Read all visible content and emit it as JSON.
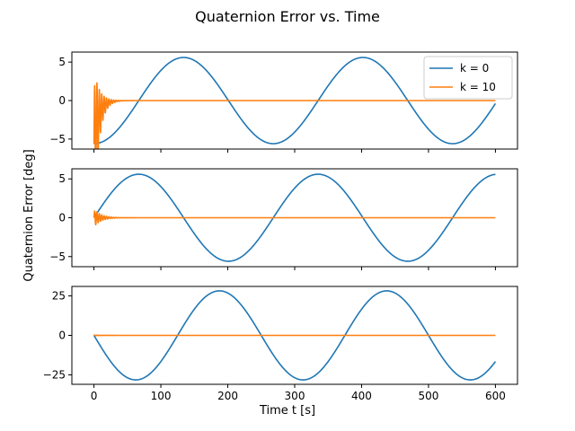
{
  "figure": {
    "title": "Quaternion Error vs. Time",
    "xlabel": "Time t [s]",
    "ylabel": "Quaternion Error [deg]"
  },
  "legend": [
    {
      "label": "k = 0",
      "color": "#1f77b4"
    },
    {
      "label": "k = 10",
      "color": "#ff7f0e"
    }
  ],
  "chart_data": [
    {
      "type": "line",
      "xlim": [
        -33,
        633
      ],
      "ylim": [
        -6.3,
        6.3
      ],
      "xticks": [
        0,
        100,
        200,
        300,
        400,
        500,
        600
      ],
      "yticks": [
        -5,
        0,
        5
      ],
      "show_xticklabels": false,
      "legend_position": "upper right",
      "series": [
        {
          "name": "k = 0",
          "color": "#1f77b4",
          "model": {
            "kind": "sine",
            "amplitude": 5.6,
            "period": 268,
            "phase_deg": -90,
            "x": [
              0,
              600
            ],
            "n": 601
          }
        },
        {
          "name": "k = 10",
          "color": "#ff7f0e",
          "model": {
            "kind": "damped",
            "start": -5.6,
            "amplitude": 9.8,
            "freq_hz": 0.28,
            "decay_s": 7.5,
            "x": [
              0,
              600
            ],
            "n": 2400
          }
        }
      ]
    },
    {
      "type": "line",
      "xlim": [
        -33,
        633
      ],
      "ylim": [
        -6.3,
        6.3
      ],
      "xticks": [
        0,
        100,
        200,
        300,
        400,
        500,
        600
      ],
      "yticks": [
        -5,
        0,
        5
      ],
      "show_xticklabels": false,
      "series": [
        {
          "name": "k = 0",
          "color": "#1f77b4",
          "model": {
            "kind": "sine",
            "amplitude": 5.6,
            "period": 268,
            "phase_deg": 0,
            "x": [
              0,
              600
            ],
            "n": 601
          }
        },
        {
          "name": "k = 10",
          "color": "#ff7f0e",
          "model": {
            "kind": "damped",
            "start": 0,
            "amplitude": 1.2,
            "freq_hz": 0.28,
            "decay_s": 10,
            "x": [
              0,
              600
            ],
            "n": 2400
          }
        }
      ]
    },
    {
      "type": "line",
      "xlim": [
        -33,
        633
      ],
      "ylim": [
        -31,
        31
      ],
      "xticks": [
        0,
        100,
        200,
        300,
        400,
        500,
        600
      ],
      "yticks": [
        -25,
        0,
        25
      ],
      "show_xticklabels": true,
      "series": [
        {
          "name": "k = 0",
          "color": "#1f77b4",
          "model": {
            "kind": "sine",
            "amplitude": -28.2,
            "period": 250,
            "phase_deg": 0,
            "x": [
              0,
              600
            ],
            "n": 601
          }
        },
        {
          "name": "k = 10",
          "color": "#ff7f0e",
          "model": {
            "kind": "damped",
            "start": 0,
            "amplitude": 0.3,
            "freq_hz": 0.28,
            "decay_s": 10,
            "x": [
              0,
              600
            ],
            "n": 2400
          }
        }
      ]
    }
  ]
}
